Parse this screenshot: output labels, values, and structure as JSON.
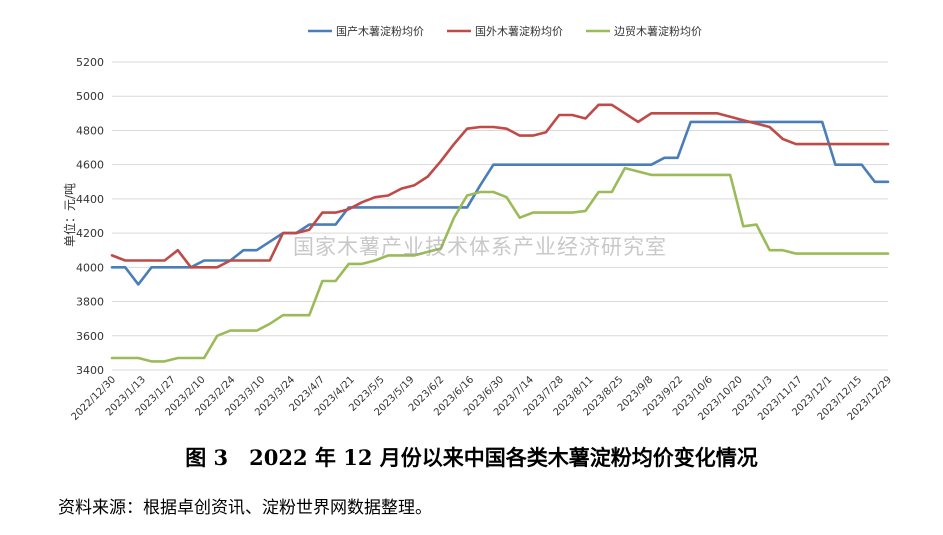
{
  "caption": "图 3　2022 年 12 月份以来中国各类木薯淀粉均价变化情况",
  "source": "资料来源：根据卓创资讯、淀粉世界网数据整理。",
  "watermark": "国家木薯产业技术体系产业经济研究室",
  "chart_data": {
    "type": "line",
    "title": "",
    "xlabel": "",
    "ylabel": "单位：元/吨",
    "ylim": [
      3400,
      5200
    ],
    "yticks": [
      3400,
      3600,
      3800,
      4000,
      4200,
      4400,
      4600,
      4800,
      5000,
      5200
    ],
    "grid": true,
    "legend_position": "top",
    "x_tick_labels": [
      "2022/12/30",
      "2023/1/13",
      "2023/1/27",
      "2023/2/10",
      "2023/2/24",
      "2023/3/10",
      "2023/3/24",
      "2023/4/7",
      "2023/4/21",
      "2023/5/5",
      "2023/5/19",
      "2023/6/2",
      "2023/6/16",
      "2023/6/30",
      "2023/7/14",
      "2023/7/28",
      "2023/8/11",
      "2023/8/25",
      "2023/9/8",
      "2023/9/22",
      "2023/10/6",
      "2023/10/20",
      "2023/11/3",
      "2023/11/17",
      "2023/12/1",
      "2023/12/15",
      "2023/12/29"
    ],
    "series": [
      {
        "name": "国产木薯淀粉均价",
        "color": "#4a7ebb",
        "values": [
          4000,
          4000,
          3900,
          4000,
          4000,
          4000,
          4000,
          4040,
          4040,
          4040,
          4100,
          4100,
          4150,
          4200,
          4200,
          4250,
          4250,
          4250,
          4350,
          4350,
          4350,
          4350,
          4350,
          4350,
          4350,
          4350,
          4350,
          4350,
          4480,
          4600,
          4600,
          4600,
          4600,
          4600,
          4600,
          4600,
          4600,
          4600,
          4600,
          4600,
          4600,
          4600,
          4640,
          4640,
          4850,
          4850,
          4850,
          4850,
          4850,
          4850,
          4850,
          4850,
          4850,
          4850,
          4850,
          4600,
          4600,
          4600,
          4500,
          4500
        ]
      },
      {
        "name": "国外木薯淀粉均价",
        "color": "#be4b48",
        "values": [
          4070,
          4040,
          4040,
          4040,
          4040,
          4100,
          4000,
          4000,
          4000,
          4040,
          4040,
          4040,
          4040,
          4200,
          4200,
          4220,
          4320,
          4320,
          4340,
          4380,
          4410,
          4420,
          4460,
          4480,
          4530,
          4620,
          4720,
          4810,
          4820,
          4820,
          4810,
          4770,
          4770,
          4790,
          4890,
          4890,
          4870,
          4950,
          4950,
          4900,
          4850,
          4900,
          4900,
          4900,
          4900,
          4900,
          4900,
          4880,
          4860,
          4840,
          4820,
          4750,
          4720,
          4720,
          4720,
          4720,
          4720,
          4720,
          4720,
          4720
        ]
      },
      {
        "name": "边贸木薯淀粉均价",
        "color": "#9bbb59",
        "values": [
          3470,
          3470,
          3470,
          3450,
          3450,
          3470,
          3470,
          3470,
          3600,
          3630,
          3630,
          3630,
          3670,
          3720,
          3720,
          3720,
          3920,
          3920,
          4020,
          4020,
          4040,
          4070,
          4070,
          4070,
          4090,
          4110,
          4290,
          4420,
          4440,
          4440,
          4410,
          4290,
          4320,
          4320,
          4320,
          4320,
          4330,
          4440,
          4440,
          4580,
          4560,
          4540,
          4540,
          4540,
          4540,
          4540,
          4540,
          4540,
          4240,
          4250,
          4100,
          4100,
          4080,
          4080,
          4080,
          4080,
          4080,
          4080,
          4080,
          4080
        ]
      }
    ]
  }
}
